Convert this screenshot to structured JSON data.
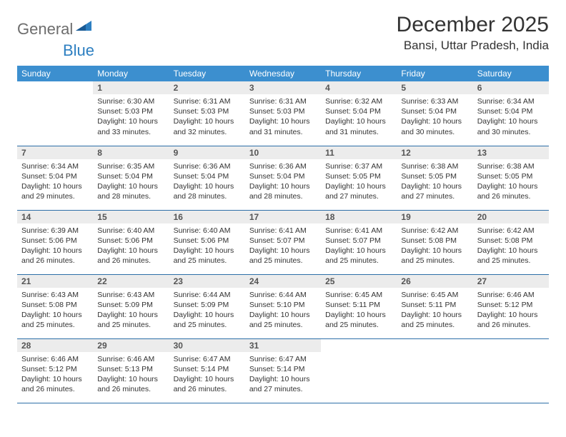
{
  "logo": {
    "text": "General",
    "accent": "Blue"
  },
  "title": "December 2025",
  "location": "Bansi, Uttar Pradesh, India",
  "colors": {
    "header_bg": "#3c8fcf",
    "header_text": "#ffffff",
    "daynum_bg": "#ececec",
    "daynum_text": "#555555",
    "cell_border": "#2d6fa8",
    "body_text": "#333333",
    "logo_gray": "#6d6d6d",
    "logo_blue": "#2d7fc1"
  },
  "daysOfWeek": [
    "Sunday",
    "Monday",
    "Tuesday",
    "Wednesday",
    "Thursday",
    "Friday",
    "Saturday"
  ],
  "startOffset": 1,
  "days": [
    {
      "n": 1,
      "sunrise": "6:30 AM",
      "sunset": "5:03 PM",
      "daylight": "10 hours and 33 minutes."
    },
    {
      "n": 2,
      "sunrise": "6:31 AM",
      "sunset": "5:03 PM",
      "daylight": "10 hours and 32 minutes."
    },
    {
      "n": 3,
      "sunrise": "6:31 AM",
      "sunset": "5:03 PM",
      "daylight": "10 hours and 31 minutes."
    },
    {
      "n": 4,
      "sunrise": "6:32 AM",
      "sunset": "5:04 PM",
      "daylight": "10 hours and 31 minutes."
    },
    {
      "n": 5,
      "sunrise": "6:33 AM",
      "sunset": "5:04 PM",
      "daylight": "10 hours and 30 minutes."
    },
    {
      "n": 6,
      "sunrise": "6:34 AM",
      "sunset": "5:04 PM",
      "daylight": "10 hours and 30 minutes."
    },
    {
      "n": 7,
      "sunrise": "6:34 AM",
      "sunset": "5:04 PM",
      "daylight": "10 hours and 29 minutes."
    },
    {
      "n": 8,
      "sunrise": "6:35 AM",
      "sunset": "5:04 PM",
      "daylight": "10 hours and 28 minutes."
    },
    {
      "n": 9,
      "sunrise": "6:36 AM",
      "sunset": "5:04 PM",
      "daylight": "10 hours and 28 minutes."
    },
    {
      "n": 10,
      "sunrise": "6:36 AM",
      "sunset": "5:04 PM",
      "daylight": "10 hours and 28 minutes."
    },
    {
      "n": 11,
      "sunrise": "6:37 AM",
      "sunset": "5:05 PM",
      "daylight": "10 hours and 27 minutes."
    },
    {
      "n": 12,
      "sunrise": "6:38 AM",
      "sunset": "5:05 PM",
      "daylight": "10 hours and 27 minutes."
    },
    {
      "n": 13,
      "sunrise": "6:38 AM",
      "sunset": "5:05 PM",
      "daylight": "10 hours and 26 minutes."
    },
    {
      "n": 14,
      "sunrise": "6:39 AM",
      "sunset": "5:06 PM",
      "daylight": "10 hours and 26 minutes."
    },
    {
      "n": 15,
      "sunrise": "6:40 AM",
      "sunset": "5:06 PM",
      "daylight": "10 hours and 26 minutes."
    },
    {
      "n": 16,
      "sunrise": "6:40 AM",
      "sunset": "5:06 PM",
      "daylight": "10 hours and 25 minutes."
    },
    {
      "n": 17,
      "sunrise": "6:41 AM",
      "sunset": "5:07 PM",
      "daylight": "10 hours and 25 minutes."
    },
    {
      "n": 18,
      "sunrise": "6:41 AM",
      "sunset": "5:07 PM",
      "daylight": "10 hours and 25 minutes."
    },
    {
      "n": 19,
      "sunrise": "6:42 AM",
      "sunset": "5:08 PM",
      "daylight": "10 hours and 25 minutes."
    },
    {
      "n": 20,
      "sunrise": "6:42 AM",
      "sunset": "5:08 PM",
      "daylight": "10 hours and 25 minutes."
    },
    {
      "n": 21,
      "sunrise": "6:43 AM",
      "sunset": "5:08 PM",
      "daylight": "10 hours and 25 minutes."
    },
    {
      "n": 22,
      "sunrise": "6:43 AM",
      "sunset": "5:09 PM",
      "daylight": "10 hours and 25 minutes."
    },
    {
      "n": 23,
      "sunrise": "6:44 AM",
      "sunset": "5:09 PM",
      "daylight": "10 hours and 25 minutes."
    },
    {
      "n": 24,
      "sunrise": "6:44 AM",
      "sunset": "5:10 PM",
      "daylight": "10 hours and 25 minutes."
    },
    {
      "n": 25,
      "sunrise": "6:45 AM",
      "sunset": "5:11 PM",
      "daylight": "10 hours and 25 minutes."
    },
    {
      "n": 26,
      "sunrise": "6:45 AM",
      "sunset": "5:11 PM",
      "daylight": "10 hours and 25 minutes."
    },
    {
      "n": 27,
      "sunrise": "6:46 AM",
      "sunset": "5:12 PM",
      "daylight": "10 hours and 26 minutes."
    },
    {
      "n": 28,
      "sunrise": "6:46 AM",
      "sunset": "5:12 PM",
      "daylight": "10 hours and 26 minutes."
    },
    {
      "n": 29,
      "sunrise": "6:46 AM",
      "sunset": "5:13 PM",
      "daylight": "10 hours and 26 minutes."
    },
    {
      "n": 30,
      "sunrise": "6:47 AM",
      "sunset": "5:14 PM",
      "daylight": "10 hours and 26 minutes."
    },
    {
      "n": 31,
      "sunrise": "6:47 AM",
      "sunset": "5:14 PM",
      "daylight": "10 hours and 27 minutes."
    }
  ],
  "labels": {
    "sunrise": "Sunrise:",
    "sunset": "Sunset:",
    "daylight": "Daylight:"
  }
}
